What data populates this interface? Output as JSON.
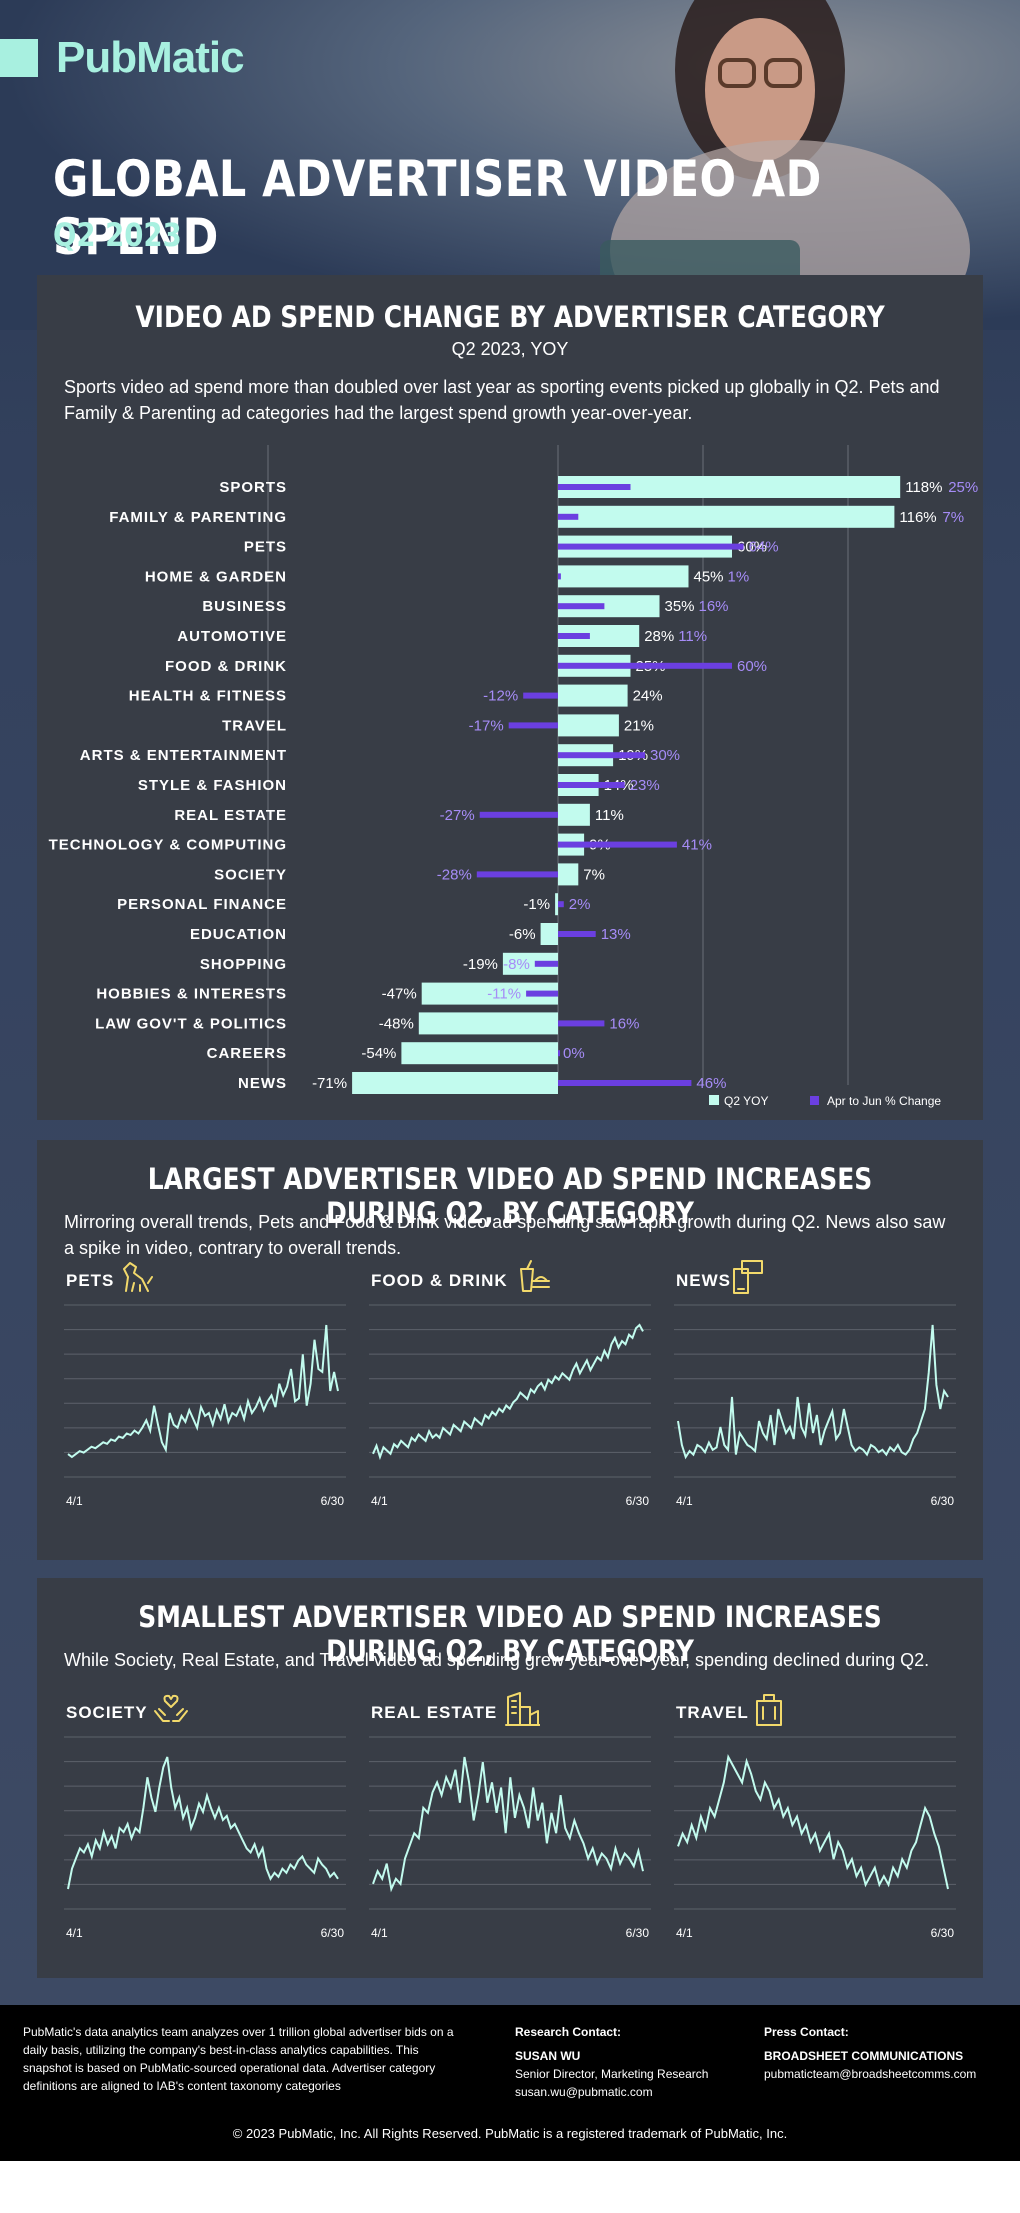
{
  "brand": "PubMatic",
  "title": "GLOBAL ADVERTISER VIDEO AD SPEND",
  "subtitle": "Q2 2023",
  "section1": {
    "title": "VIDEO AD SPEND CHANGE BY ADVERTISER CATEGORY",
    "subtitle": "Q2 2023, YOY",
    "description": "Sports video ad spend more than doubled over last year as sporting events picked up globally in Q2. Pets and Family & Parenting ad categories had the largest spend growth year-over-year."
  },
  "section2": {
    "title": "LARGEST ADVERTISER VIDEO AD SPEND INCREASES DURING Q2, BY CATEGORY",
    "description": "Mirroring overall trends, Pets and Food & Drink video ad spending saw rapid growth during Q2. News also saw a spike in video, contrary to overall trends.",
    "charts": [
      {
        "label": "PETS",
        "icon": "dog-icon"
      },
      {
        "label": "FOOD & DRINK",
        "icon": "food-drink-icon"
      },
      {
        "label": "NEWS",
        "icon": "news-phone-icon"
      }
    ]
  },
  "section3": {
    "title": "SMALLEST ADVERTISER VIDEO AD SPEND INCREASES DURING Q2, BY CATEGORY",
    "description": "While Society, Real Estate, and Travel video ad spending grew year-over-year, spending declined during Q2.",
    "charts": [
      {
        "label": "SOCIETY",
        "icon": "hands-heart-icon"
      },
      {
        "label": "REAL ESTATE",
        "icon": "buildings-icon"
      },
      {
        "label": "TRAVEL",
        "icon": "luggage-icon"
      }
    ]
  },
  "colors": {
    "q2": "#c2fbee",
    "apr": "#6b3fe0",
    "accent": "#a8f0e0",
    "icon": "#f2d96b"
  },
  "chart_data": [
    {
      "type": "bar",
      "title": "VIDEO AD SPEND CHANGE BY ADVERTISER CATEGORY",
      "subtitle": "Q2 2023, YOY",
      "categories": [
        "SPORTS",
        "FAMILY & PARENTING",
        "PETS",
        "HOME & GARDEN",
        "BUSINESS",
        "AUTOMOTIVE",
        "FOOD & DRINK",
        "HEALTH & FITNESS",
        "TRAVEL",
        "ARTS & ENTERTAINMENT",
        "STYLE & FASHION",
        "REAL ESTATE",
        "TECHNOLOGY & COMPUTING",
        "SOCIETY",
        "PERSONAL FINANCE",
        "EDUCATION",
        "SHOPPING",
        "HOBBIES & INTERESTS",
        "LAW GOV'T & POLITICS",
        "CAREERS",
        "NEWS"
      ],
      "series": [
        {
          "name": "Q2 YOY",
          "values": [
            118,
            116,
            60,
            45,
            35,
            28,
            25,
            24,
            21,
            19,
            14,
            11,
            9,
            7,
            -1,
            -6,
            -19,
            -47,
            -48,
            -54,
            -71
          ]
        },
        {
          "name": "Apr to Jun % Change",
          "values": [
            25,
            7,
            64,
            1,
            16,
            11,
            60,
            -12,
            -17,
            30,
            23,
            -27,
            41,
            -28,
            2,
            13,
            -8,
            -11,
            16,
            0,
            46
          ]
        }
      ],
      "unit": "%",
      "legend_position": "bottom-right"
    },
    {
      "type": "line",
      "title": "PETS",
      "x_start": "4/1",
      "x_end": "6/30",
      "values": [
        12,
        10,
        12,
        14,
        13,
        15,
        17,
        16,
        18,
        20,
        19,
        22,
        21,
        24,
        23,
        26,
        25,
        28,
        26,
        30,
        35,
        28,
        45,
        32,
        20,
        15,
        40,
        32,
        30,
        38,
        34,
        42,
        36,
        30,
        44,
        38,
        40,
        32,
        42,
        36,
        46,
        34,
        40,
        38,
        44,
        36,
        48,
        40,
        44,
        50,
        42,
        48,
        52,
        44,
        60,
        52,
        58,
        70,
        48,
        50,
        80,
        45,
        60,
        90,
        70,
        68,
        100,
        55,
        68,
        55
      ]
    },
    {
      "type": "line",
      "title": "FOOD & DRINK",
      "x_start": "4/1",
      "x_end": "6/30",
      "values": [
        40,
        45,
        38,
        44,
        42,
        40,
        46,
        44,
        48,
        46,
        44,
        50,
        48,
        52,
        50,
        48,
        54,
        50,
        52,
        50,
        56,
        54,
        52,
        58,
        56,
        54,
        60,
        58,
        56,
        62,
        60,
        58,
        64,
        62,
        66,
        64,
        68,
        66,
        70,
        68,
        72,
        74,
        78,
        76,
        74,
        80,
        78,
        82,
        84,
        80,
        86,
        84,
        88,
        86,
        90,
        88,
        86,
        92,
        96,
        90,
        94,
        98,
        92,
        96,
        100,
        98,
        104,
        100,
        108,
        112,
        106,
        110,
        108,
        114,
        112,
        118,
        120,
        116
      ]
    },
    {
      "type": "line",
      "title": "NEWS",
      "x_start": "4/1",
      "x_end": "6/30",
      "values": [
        50,
        30,
        20,
        25,
        22,
        30,
        28,
        24,
        32,
        26,
        28,
        45,
        30,
        26,
        70,
        22,
        40,
        35,
        30,
        28,
        25,
        50,
        40,
        35,
        55,
        30,
        60,
        50,
        40,
        45,
        35,
        70,
        45,
        38,
        65,
        40,
        55,
        30,
        42,
        50,
        58,
        35,
        40,
        60,
        45,
        30,
        25,
        28,
        26,
        22,
        30,
        28,
        24,
        26,
        22,
        28,
        25,
        30,
        24,
        22,
        26,
        35,
        40,
        50,
        60,
        90,
        130,
        80,
        60,
        75,
        70
      ]
    },
    {
      "type": "line",
      "title": "SOCIETY",
      "x_start": "4/1",
      "x_end": "6/30",
      "values": [
        20,
        30,
        35,
        40,
        38,
        42,
        36,
        44,
        40,
        48,
        42,
        46,
        40,
        50,
        48,
        52,
        45,
        50,
        48,
        60,
        75,
        65,
        58,
        70,
        80,
        85,
        70,
        60,
        65,
        55,
        60,
        50,
        55,
        62,
        58,
        66,
        60,
        55,
        60,
        54,
        56,
        50,
        52,
        48,
        44,
        40,
        38,
        42,
        36,
        40,
        30,
        25,
        28,
        26,
        30,
        28,
        32,
        30,
        34,
        36,
        32,
        30,
        28,
        35,
        32,
        30,
        26,
        28,
        25
      ]
    },
    {
      "type": "line",
      "title": "REAL ESTATE",
      "x_start": "4/1",
      "x_end": "6/30",
      "values": [
        20,
        25,
        22,
        28,
        18,
        22,
        20,
        30,
        35,
        40,
        38,
        50,
        48,
        56,
        60,
        55,
        62,
        58,
        65,
        52,
        70,
        60,
        45,
        55,
        68,
        52,
        60,
        48,
        58,
        40,
        62,
        46,
        55,
        50,
        42,
        58,
        45,
        52,
        36,
        48,
        40,
        55,
        42,
        38,
        45,
        40,
        36,
        30,
        34,
        28,
        32,
        30,
        26,
        34,
        28,
        32,
        30,
        27,
        33,
        25
      ]
    },
    {
      "type": "line",
      "title": "TRAVEL",
      "x_start": "4/1",
      "x_end": "6/30",
      "values": [
        65,
        68,
        66,
        70,
        67,
        72,
        69,
        74,
        72,
        76,
        80,
        86,
        84,
        82,
        80,
        85,
        82,
        78,
        76,
        80,
        78,
        74,
        76,
        72,
        74,
        70,
        72,
        68,
        70,
        66,
        68,
        64,
        66,
        68,
        62,
        66,
        64,
        60,
        62,
        58,
        60,
        56,
        58,
        60,
        56,
        58,
        56,
        60,
        58,
        62,
        60,
        64,
        66,
        70,
        74,
        72,
        68,
        65,
        60,
        55
      ]
    }
  ]
}
